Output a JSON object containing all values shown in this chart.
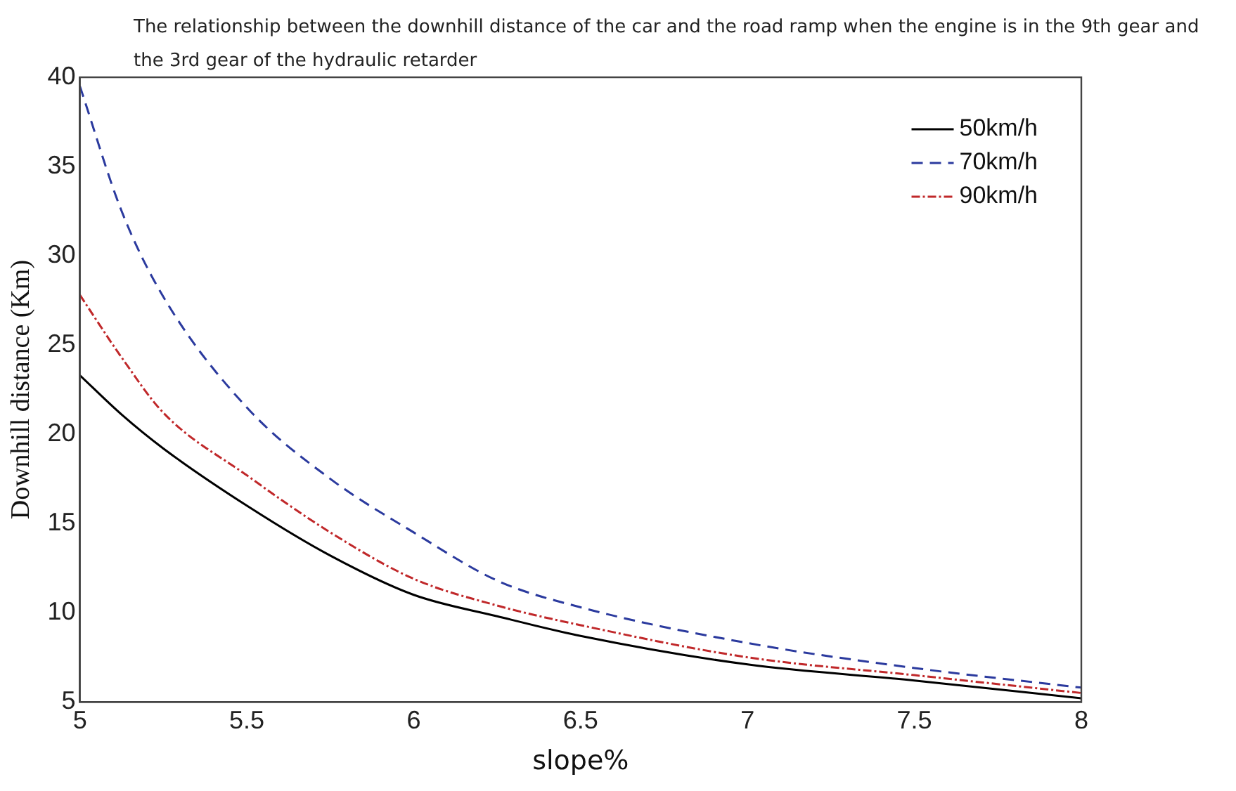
{
  "chart_data": {
    "type": "line",
    "title": "The relationship between the downhill distance of the car and the road ramp when the engine is in the 9th gear and the 3rd gear of the hydraulic retarder",
    "xlabel": "slope%",
    "ylabel": "Downhill distance (Km)",
    "x": [
      5,
      5.125,
      5.25,
      5.5,
      5.75,
      6,
      6.25,
      6.5,
      7,
      7.5,
      8
    ],
    "series": [
      {
        "name": "50km/h",
        "color": "#000000",
        "line_style": "solid",
        "values": [
          23.3,
          21.1,
          19.2,
          16.0,
          13.2,
          11.0,
          9.8,
          8.7,
          7.1,
          6.2,
          5.2
        ]
      },
      {
        "name": "70km/h",
        "color": "#2b3a9e",
        "line_style": "dashed",
        "values": [
          39.5,
          32.5,
          27.7,
          21.5,
          17.5,
          14.5,
          11.8,
          10.3,
          8.3,
          6.9,
          5.8
        ]
      },
      {
        "name": "90km/h",
        "color": "#c0282a",
        "line_style": "dotted",
        "values": [
          27.8,
          24.3,
          21.2,
          17.7,
          14.5,
          11.9,
          10.4,
          9.3,
          7.5,
          6.5,
          5.5
        ]
      }
    ],
    "xlim": [
      5,
      8
    ],
    "xticks": [
      5,
      5.5,
      6,
      6.5,
      7,
      7.5,
      8
    ],
    "ylim": [
      5,
      40
    ],
    "yticks": [
      5,
      10,
      15,
      20,
      25,
      30,
      35,
      40
    ],
    "grid": false,
    "legend": "top right",
    "marker": "none"
  }
}
